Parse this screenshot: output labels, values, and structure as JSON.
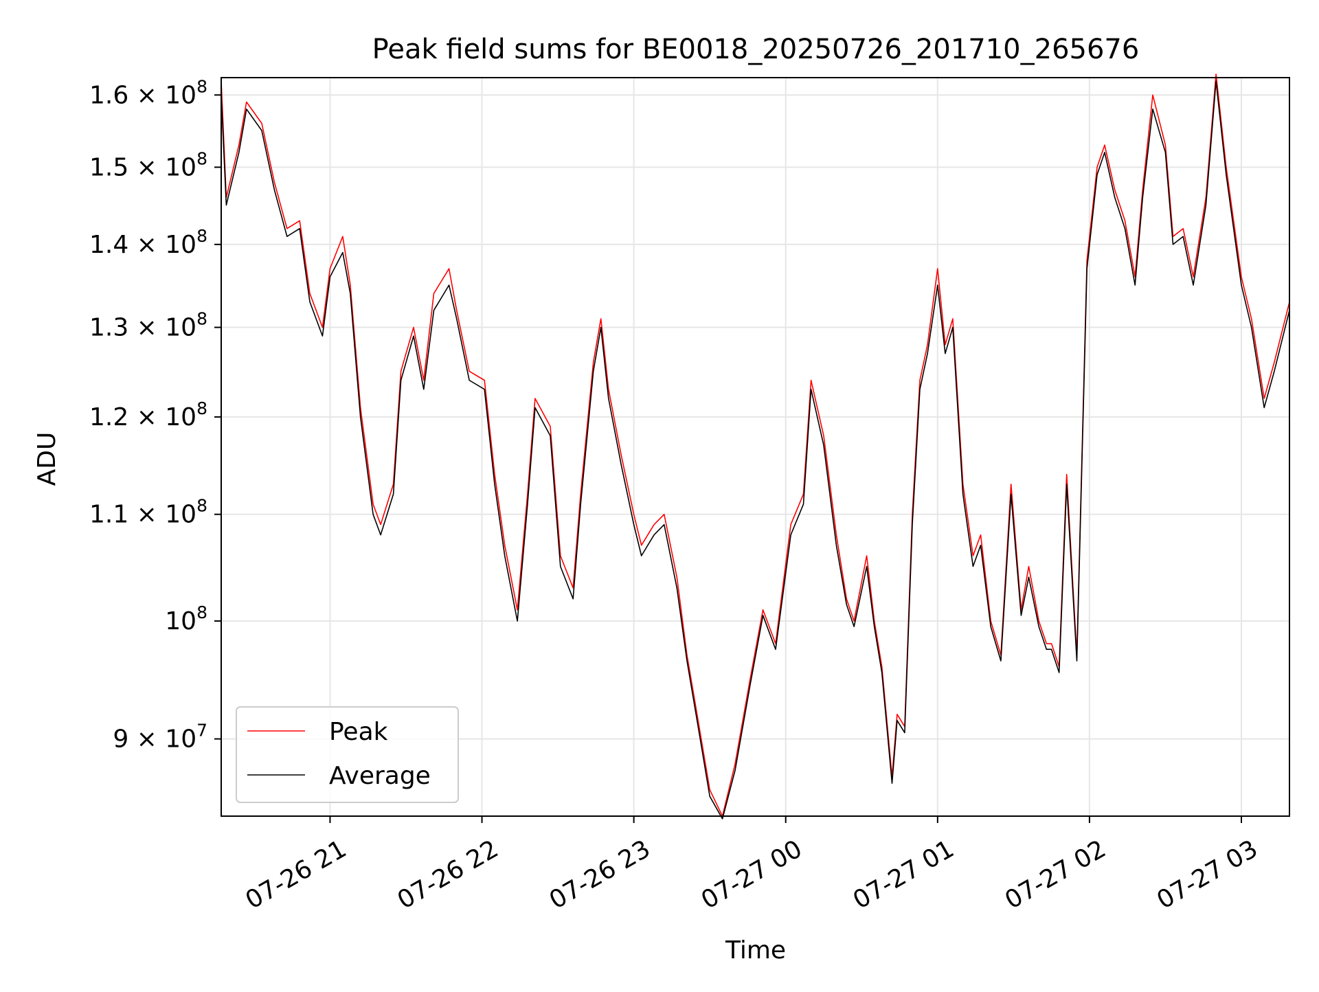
{
  "chart_data": {
    "type": "line",
    "title": "Peak field sums for BE0018_20250726_201710_265676",
    "xlabel": "Time",
    "ylabel": "ADU",
    "y_scale": "log",
    "xlim": [
      "2025-07-26 20:17",
      "2025-07-27 03:19"
    ],
    "ylim": [
      84000000,
      162500000
    ],
    "grid": true,
    "legend_position": "lower-left",
    "x_ticks": [
      {
        "value": "2025-07-26 21:00",
        "label": "07-26 21"
      },
      {
        "value": "2025-07-26 22:00",
        "label": "07-26 22"
      },
      {
        "value": "2025-07-26 23:00",
        "label": "07-26 23"
      },
      {
        "value": "2025-07-27 00:00",
        "label": "07-27 00"
      },
      {
        "value": "2025-07-27 01:00",
        "label": "07-27 01"
      },
      {
        "value": "2025-07-27 02:00",
        "label": "07-27 02"
      },
      {
        "value": "2025-07-27 03:00",
        "label": "07-27 03"
      }
    ],
    "y_ticks": [
      {
        "value": 90000000,
        "mantissa": "9 × 10",
        "exp": "7"
      },
      {
        "value": 100000000,
        "mantissa": "10",
        "exp": "8"
      },
      {
        "value": 110000000,
        "mantissa": "1.1 × 10",
        "exp": "8"
      },
      {
        "value": 120000000,
        "mantissa": "1.2 × 10",
        "exp": "8"
      },
      {
        "value": 130000000,
        "mantissa": "1.3 × 10",
        "exp": "8"
      },
      {
        "value": 140000000,
        "mantissa": "1.4 × 10",
        "exp": "8"
      },
      {
        "value": 150000000,
        "mantissa": "1.5 × 10",
        "exp": "8"
      },
      {
        "value": 160000000,
        "mantissa": "1.6 × 10",
        "exp": "8"
      }
    ],
    "series": [
      {
        "name": "Peak",
        "color": "#ff0000",
        "x": [
          "2025-07-26 20:17",
          "2025-07-26 20:19",
          "2025-07-26 20:24",
          "2025-07-26 20:27",
          "2025-07-26 20:33",
          "2025-07-26 20:38",
          "2025-07-26 20:43",
          "2025-07-26 20:48",
          "2025-07-26 20:52",
          "2025-07-26 20:57",
          "2025-07-26 21:00",
          "2025-07-26 21:05",
          "2025-07-26 21:08",
          "2025-07-26 21:12",
          "2025-07-26 21:17",
          "2025-07-26 21:20",
          "2025-07-26 21:25",
          "2025-07-26 21:28",
          "2025-07-26 21:33",
          "2025-07-26 21:37",
          "2025-07-26 21:41",
          "2025-07-26 21:47",
          "2025-07-26 21:50",
          "2025-07-26 21:55",
          "2025-07-26 22:01",
          "2025-07-26 22:05",
          "2025-07-26 22:09",
          "2025-07-26 22:14",
          "2025-07-26 22:18",
          "2025-07-26 22:21",
          "2025-07-26 22:27",
          "2025-07-26 22:31",
          "2025-07-26 22:36",
          "2025-07-26 22:39",
          "2025-07-26 22:44",
          "2025-07-26 22:47",
          "2025-07-26 22:50",
          "2025-07-26 22:55",
          "2025-07-26 23:00",
          "2025-07-26 23:03",
          "2025-07-26 23:08",
          "2025-07-26 23:12",
          "2025-07-26 23:17",
          "2025-07-26 23:21",
          "2025-07-26 23:25",
          "2025-07-26 23:30",
          "2025-07-26 23:35",
          "2025-07-26 23:40",
          "2025-07-26 23:46",
          "2025-07-26 23:51",
          "2025-07-26 23:56",
          "2025-07-27 00:02",
          "2025-07-27 00:07",
          "2025-07-27 00:10",
          "2025-07-27 00:15",
          "2025-07-27 00:20",
          "2025-07-27 00:24",
          "2025-07-27 00:27",
          "2025-07-27 00:32",
          "2025-07-27 00:35",
          "2025-07-27 00:38",
          "2025-07-27 00:42",
          "2025-07-27 00:44",
          "2025-07-27 00:47",
          "2025-07-27 00:50",
          "2025-07-27 00:53",
          "2025-07-27 00:56",
          "2025-07-27 01:00",
          "2025-07-27 01:03",
          "2025-07-27 01:06",
          "2025-07-27 01:10",
          "2025-07-27 01:14",
          "2025-07-27 01:17",
          "2025-07-27 01:21",
          "2025-07-27 01:25",
          "2025-07-27 01:29",
          "2025-07-27 01:33",
          "2025-07-27 01:36",
          "2025-07-27 01:40",
          "2025-07-27 01:43",
          "2025-07-27 01:45",
          "2025-07-27 01:48",
          "2025-07-27 01:51",
          "2025-07-27 01:55",
          "2025-07-27 01:59",
          "2025-07-27 02:03",
          "2025-07-27 02:06",
          "2025-07-27 02:10",
          "2025-07-27 02:14",
          "2025-07-27 02:18",
          "2025-07-27 02:21",
          "2025-07-27 02:25",
          "2025-07-27 02:30",
          "2025-07-27 02:33",
          "2025-07-27 02:37",
          "2025-07-27 02:41",
          "2025-07-27 02:46",
          "2025-07-27 02:50",
          "2025-07-27 02:54",
          "2025-07-27 03:00",
          "2025-07-27 03:04",
          "2025-07-27 03:09",
          "2025-07-27 03:13",
          "2025-07-27 03:19"
        ],
        "y": [
          162000000,
          146000000,
          153000000,
          159000000,
          156000000,
          148000000,
          142000000,
          143000000,
          134000000,
          130000000,
          137000000,
          141000000,
          135000000,
          121000000,
          111000000,
          109000000,
          113000000,
          125000000,
          130000000,
          124000000,
          134000000,
          137000000,
          132000000,
          125000000,
          124000000,
          114000000,
          107000000,
          101000000,
          112000000,
          122000000,
          119000000,
          106000000,
          103000000,
          112000000,
          126000000,
          131000000,
          123000000,
          116000000,
          110000000,
          107000000,
          109000000,
          110000000,
          104000000,
          97000000,
          92000000,
          86000000,
          84000000,
          88000000,
          95000000,
          101000000,
          98000000,
          109000000,
          112000000,
          124000000,
          118000000,
          108000000,
          102000000,
          100000000,
          106000000,
          100000000,
          96000000,
          87000000,
          92000000,
          91000000,
          110000000,
          124000000,
          128000000,
          137000000,
          128000000,
          131000000,
          113000000,
          106000000,
          108000000,
          100000000,
          97000000,
          113000000,
          101000000,
          105000000,
          100000000,
          98000000,
          98000000,
          96000000,
          114000000,
          97000000,
          138000000,
          150000000,
          153000000,
          147000000,
          143000000,
          136000000,
          147000000,
          160000000,
          153000000,
          141000000,
          142000000,
          136000000,
          146000000,
          163000000,
          150000000,
          136000000,
          131000000,
          122000000,
          126000000,
          133000000
        ]
      },
      {
        "name": "Average",
        "color": "#000000",
        "x": [
          "2025-07-26 20:17",
          "2025-07-26 20:19",
          "2025-07-26 20:24",
          "2025-07-26 20:27",
          "2025-07-26 20:33",
          "2025-07-26 20:38",
          "2025-07-26 20:43",
          "2025-07-26 20:48",
          "2025-07-26 20:52",
          "2025-07-26 20:57",
          "2025-07-26 21:00",
          "2025-07-26 21:05",
          "2025-07-26 21:08",
          "2025-07-26 21:12",
          "2025-07-26 21:17",
          "2025-07-26 21:20",
          "2025-07-26 21:25",
          "2025-07-26 21:28",
          "2025-07-26 21:33",
          "2025-07-26 21:37",
          "2025-07-26 21:41",
          "2025-07-26 21:47",
          "2025-07-26 21:50",
          "2025-07-26 21:55",
          "2025-07-26 22:01",
          "2025-07-26 22:05",
          "2025-07-26 22:09",
          "2025-07-26 22:14",
          "2025-07-26 22:18",
          "2025-07-26 22:21",
          "2025-07-26 22:27",
          "2025-07-26 22:31",
          "2025-07-26 22:36",
          "2025-07-26 22:39",
          "2025-07-26 22:44",
          "2025-07-26 22:47",
          "2025-07-26 22:50",
          "2025-07-26 22:55",
          "2025-07-26 23:00",
          "2025-07-26 23:03",
          "2025-07-26 23:08",
          "2025-07-26 23:12",
          "2025-07-26 23:17",
          "2025-07-26 23:21",
          "2025-07-26 23:25",
          "2025-07-26 23:30",
          "2025-07-26 23:35",
          "2025-07-26 23:40",
          "2025-07-26 23:46",
          "2025-07-26 23:51",
          "2025-07-26 23:56",
          "2025-07-27 00:02",
          "2025-07-27 00:07",
          "2025-07-27 00:10",
          "2025-07-27 00:15",
          "2025-07-27 00:20",
          "2025-07-27 00:24",
          "2025-07-27 00:27",
          "2025-07-27 00:32",
          "2025-07-27 00:35",
          "2025-07-27 00:38",
          "2025-07-27 00:42",
          "2025-07-27 00:44",
          "2025-07-27 00:47",
          "2025-07-27 00:50",
          "2025-07-27 00:53",
          "2025-07-27 00:56",
          "2025-07-27 01:00",
          "2025-07-27 01:03",
          "2025-07-27 01:06",
          "2025-07-27 01:10",
          "2025-07-27 01:14",
          "2025-07-27 01:17",
          "2025-07-27 01:21",
          "2025-07-27 01:25",
          "2025-07-27 01:29",
          "2025-07-27 01:33",
          "2025-07-27 01:36",
          "2025-07-27 01:40",
          "2025-07-27 01:43",
          "2025-07-27 01:45",
          "2025-07-27 01:48",
          "2025-07-27 01:51",
          "2025-07-27 01:55",
          "2025-07-27 01:59",
          "2025-07-27 02:03",
          "2025-07-27 02:06",
          "2025-07-27 02:10",
          "2025-07-27 02:14",
          "2025-07-27 02:18",
          "2025-07-27 02:21",
          "2025-07-27 02:25",
          "2025-07-27 02:30",
          "2025-07-27 02:33",
          "2025-07-27 02:37",
          "2025-07-27 02:41",
          "2025-07-27 02:46",
          "2025-07-27 02:50",
          "2025-07-27 02:54",
          "2025-07-27 03:00",
          "2025-07-27 03:04",
          "2025-07-27 03:09",
          "2025-07-27 03:13",
          "2025-07-27 03:19"
        ],
        "y": [
          160000000,
          145000000,
          152000000,
          158000000,
          155000000,
          147000000,
          141000000,
          142000000,
          133000000,
          129000000,
          136000000,
          139000000,
          134000000,
          120000000,
          110000000,
          108000000,
          112000000,
          124000000,
          129000000,
          123000000,
          132000000,
          135000000,
          131000000,
          124000000,
          123000000,
          113000000,
          106000000,
          100000000,
          111000000,
          121000000,
          118000000,
          105000000,
          102000000,
          111000000,
          125000000,
          130000000,
          122000000,
          115000000,
          109000000,
          106000000,
          108000000,
          109000000,
          103000000,
          96500000,
          91500000,
          85500000,
          83800000,
          87500000,
          94500000,
          100500000,
          97500000,
          108000000,
          111000000,
          123000000,
          117000000,
          107000000,
          101500000,
          99500000,
          105000000,
          99500000,
          95500000,
          86500000,
          91500000,
          90500000,
          109000000,
          123000000,
          127000000,
          135000000,
          127000000,
          130000000,
          112000000,
          105000000,
          107000000,
          99500000,
          96500000,
          112000000,
          100500000,
          104000000,
          99500000,
          97500000,
          97500000,
          95500000,
          113000000,
          96500000,
          137000000,
          149000000,
          152000000,
          146000000,
          142000000,
          135000000,
          146000000,
          158000000,
          152000000,
          140000000,
          141000000,
          135000000,
          145000000,
          162000000,
          149000000,
          135000000,
          130000000,
          121000000,
          125000000,
          132000000
        ]
      }
    ]
  }
}
